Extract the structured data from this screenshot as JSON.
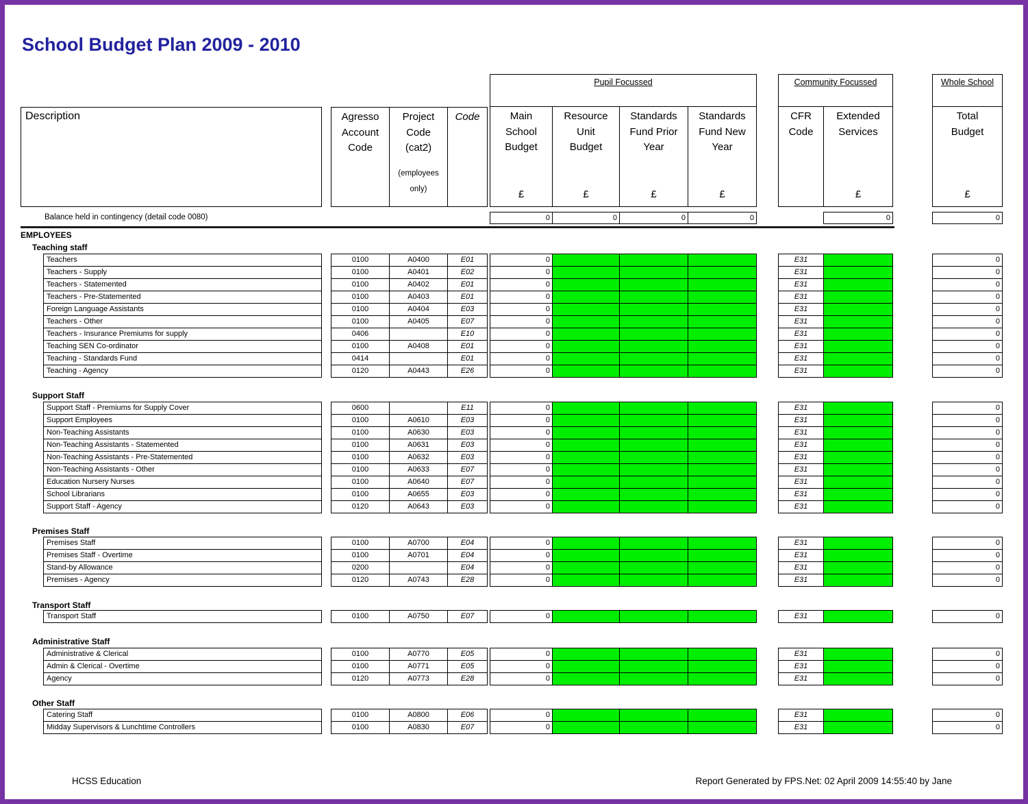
{
  "page": {
    "title": "School Budget Plan 2009 - 2010"
  },
  "colors": {
    "highlight_green": "#00ee00",
    "frame_purple": "#7633a4",
    "title_blue": "#22229e"
  },
  "header": {
    "description_label": "Description",
    "agresso_label": "Agresso\nAccount\nCode",
    "project_label": "Project\nCode\n(cat2)",
    "project_note": "(employees\nonly)",
    "code_label": "Code",
    "groups": {
      "pupil": "Pupil Focussed",
      "community": "Community Focussed",
      "whole": "Whole School"
    },
    "pupil_columns": [
      "Main\nSchool\nBudget",
      "Resource\nUnit\nBudget",
      "Standards\nFund Prior\nYear",
      "Standards\nFund New\nYear"
    ],
    "community_columns": [
      "CFR\nCode",
      "Extended\nServices"
    ],
    "whole_columns": [
      "Total\nBudget"
    ],
    "currency": "£"
  },
  "balance_row": {
    "label": "Balance held in contingency (detail code 0080)",
    "main": "0",
    "resource": "0",
    "standards_prior": "0",
    "standards_new": "0",
    "extended": "0",
    "total": "0"
  },
  "employees_heading": "EMPLOYEES",
  "sections": [
    {
      "label": "Teaching staff",
      "rows": [
        {
          "description": "Teachers",
          "agresso": "0100",
          "project": "A0400",
          "code": "E01",
          "main": "0",
          "cfr": "E31",
          "total": "0"
        },
        {
          "description": "Teachers - Supply",
          "agresso": "0100",
          "project": "A0401",
          "code": "E02",
          "main": "0",
          "cfr": "E31",
          "total": "0"
        },
        {
          "description": "Teachers - Statemented",
          "agresso": "0100",
          "project": "A0402",
          "code": "E01",
          "main": "0",
          "cfr": "E31",
          "total": "0"
        },
        {
          "description": "Teachers - Pre-Statemented",
          "agresso": "0100",
          "project": "A0403",
          "code": "E01",
          "main": "0",
          "cfr": "E31",
          "total": "0"
        },
        {
          "description": "Foreign Language Assistants",
          "agresso": "0100",
          "project": "A0404",
          "code": "E03",
          "main": "0",
          "cfr": "E31",
          "total": "0"
        },
        {
          "description": "Teachers - Other",
          "agresso": "0100",
          "project": "A0405",
          "code": "E07",
          "main": "0",
          "cfr": "E31",
          "total": "0"
        },
        {
          "description": "Teachers - Insurance Premiums for supply",
          "agresso": "0406",
          "project": "",
          "code": "E10",
          "main": "0",
          "cfr": "E31",
          "total": "0"
        },
        {
          "description": "Teaching SEN Co-ordinator",
          "agresso": "0100",
          "project": "A0408",
          "code": "E01",
          "main": "0",
          "cfr": "E31",
          "total": "0"
        },
        {
          "description": "Teaching - Standards Fund",
          "agresso": "0414",
          "project": "",
          "code": "E01",
          "main": "0",
          "cfr": "E31",
          "total": "0"
        },
        {
          "description": "Teaching - Agency",
          "agresso": "0120",
          "project": "A0443",
          "code": "E26",
          "main": "0",
          "cfr": "E31",
          "total": "0"
        }
      ]
    },
    {
      "label": "Support Staff",
      "rows": [
        {
          "description": "Support Staff - Premiums for Supply Cover",
          "agresso": "0600",
          "project": "",
          "code": "E11",
          "main": "0",
          "cfr": "E31",
          "total": "0"
        },
        {
          "description": "Support Employees",
          "agresso": "0100",
          "project": "A0610",
          "code": "E03",
          "main": "0",
          "cfr": "E31",
          "total": "0"
        },
        {
          "description": "Non-Teaching Assistants",
          "agresso": "0100",
          "project": "A0630",
          "code": "E03",
          "main": "0",
          "cfr": "E31",
          "total": "0"
        },
        {
          "description": "Non-Teaching Assistants - Statemented",
          "agresso": "0100",
          "project": "A0631",
          "code": "E03",
          "main": "0",
          "cfr": "E31",
          "total": "0"
        },
        {
          "description": "Non-Teaching Assistants - Pre-Statemented",
          "agresso": "0100",
          "project": "A0632",
          "code": "E03",
          "main": "0",
          "cfr": "E31",
          "total": "0"
        },
        {
          "description": "Non-Teaching Assistants - Other",
          "agresso": "0100",
          "project": "A0633",
          "code": "E07",
          "main": "0",
          "cfr": "E31",
          "total": "0"
        },
        {
          "description": "Education Nursery Nurses",
          "agresso": "0100",
          "project": "A0640",
          "code": "E07",
          "main": "0",
          "cfr": "E31",
          "total": "0"
        },
        {
          "description": "School Librarians",
          "agresso": "0100",
          "project": "A0655",
          "code": "E03",
          "main": "0",
          "cfr": "E31",
          "total": "0"
        },
        {
          "description": "Support Staff - Agency",
          "agresso": "0120",
          "project": "A0643",
          "code": "E03",
          "main": "0",
          "cfr": "E31",
          "total": "0"
        }
      ]
    },
    {
      "label": "Premises Staff",
      "rows": [
        {
          "description": "Premises Staff",
          "agresso": "0100",
          "project": "A0700",
          "code": "E04",
          "main": "0",
          "cfr": "E31",
          "total": "0"
        },
        {
          "description": "Premises Staff - Overtime",
          "agresso": "0100",
          "project": "A0701",
          "code": "E04",
          "main": "0",
          "cfr": "E31",
          "total": "0"
        },
        {
          "description": "Stand-by Allowance",
          "agresso": "0200",
          "project": "",
          "code": "E04",
          "main": "0",
          "cfr": "E31",
          "total": "0"
        },
        {
          "description": "Premises - Agency",
          "agresso": "0120",
          "project": "A0743",
          "code": "E28",
          "main": "0",
          "cfr": "E31",
          "total": "0"
        }
      ]
    },
    {
      "label": "Transport Staff",
      "rows": [
        {
          "description": "Transport Staff",
          "agresso": "0100",
          "project": "A0750",
          "code": "E07",
          "main": "0",
          "cfr": "E31",
          "total": "0"
        }
      ]
    },
    {
      "label": "Administrative Staff",
      "rows": [
        {
          "description": "Administrative & Clerical",
          "agresso": "0100",
          "project": "A0770",
          "code": "E05",
          "main": "0",
          "cfr": "E31",
          "total": "0"
        },
        {
          "description": "Admin & Clerical - Overtime",
          "agresso": "0100",
          "project": "A0771",
          "code": "E05",
          "main": "0",
          "cfr": "E31",
          "total": "0"
        },
        {
          "description": "Agency",
          "agresso": "0120",
          "project": "A0773",
          "code": "E28",
          "main": "0",
          "cfr": "E31",
          "total": "0"
        }
      ]
    },
    {
      "label": "Other Staff",
      "rows": [
        {
          "description": "Catering Staff",
          "agresso": "0100",
          "project": "A0800",
          "code": "E06",
          "main": "0",
          "cfr": "E31",
          "total": "0"
        },
        {
          "description": "Midday Supervisors & Lunchtime Controllers",
          "agresso": "0100",
          "project": "A0830",
          "code": "E07",
          "main": "0",
          "cfr": "E31",
          "total": "0"
        }
      ]
    }
  ],
  "footer": {
    "left": "HCSS Education",
    "right": "Report Generated by FPS.Net: 02 April 2009 14:55:40 by Jane"
  }
}
